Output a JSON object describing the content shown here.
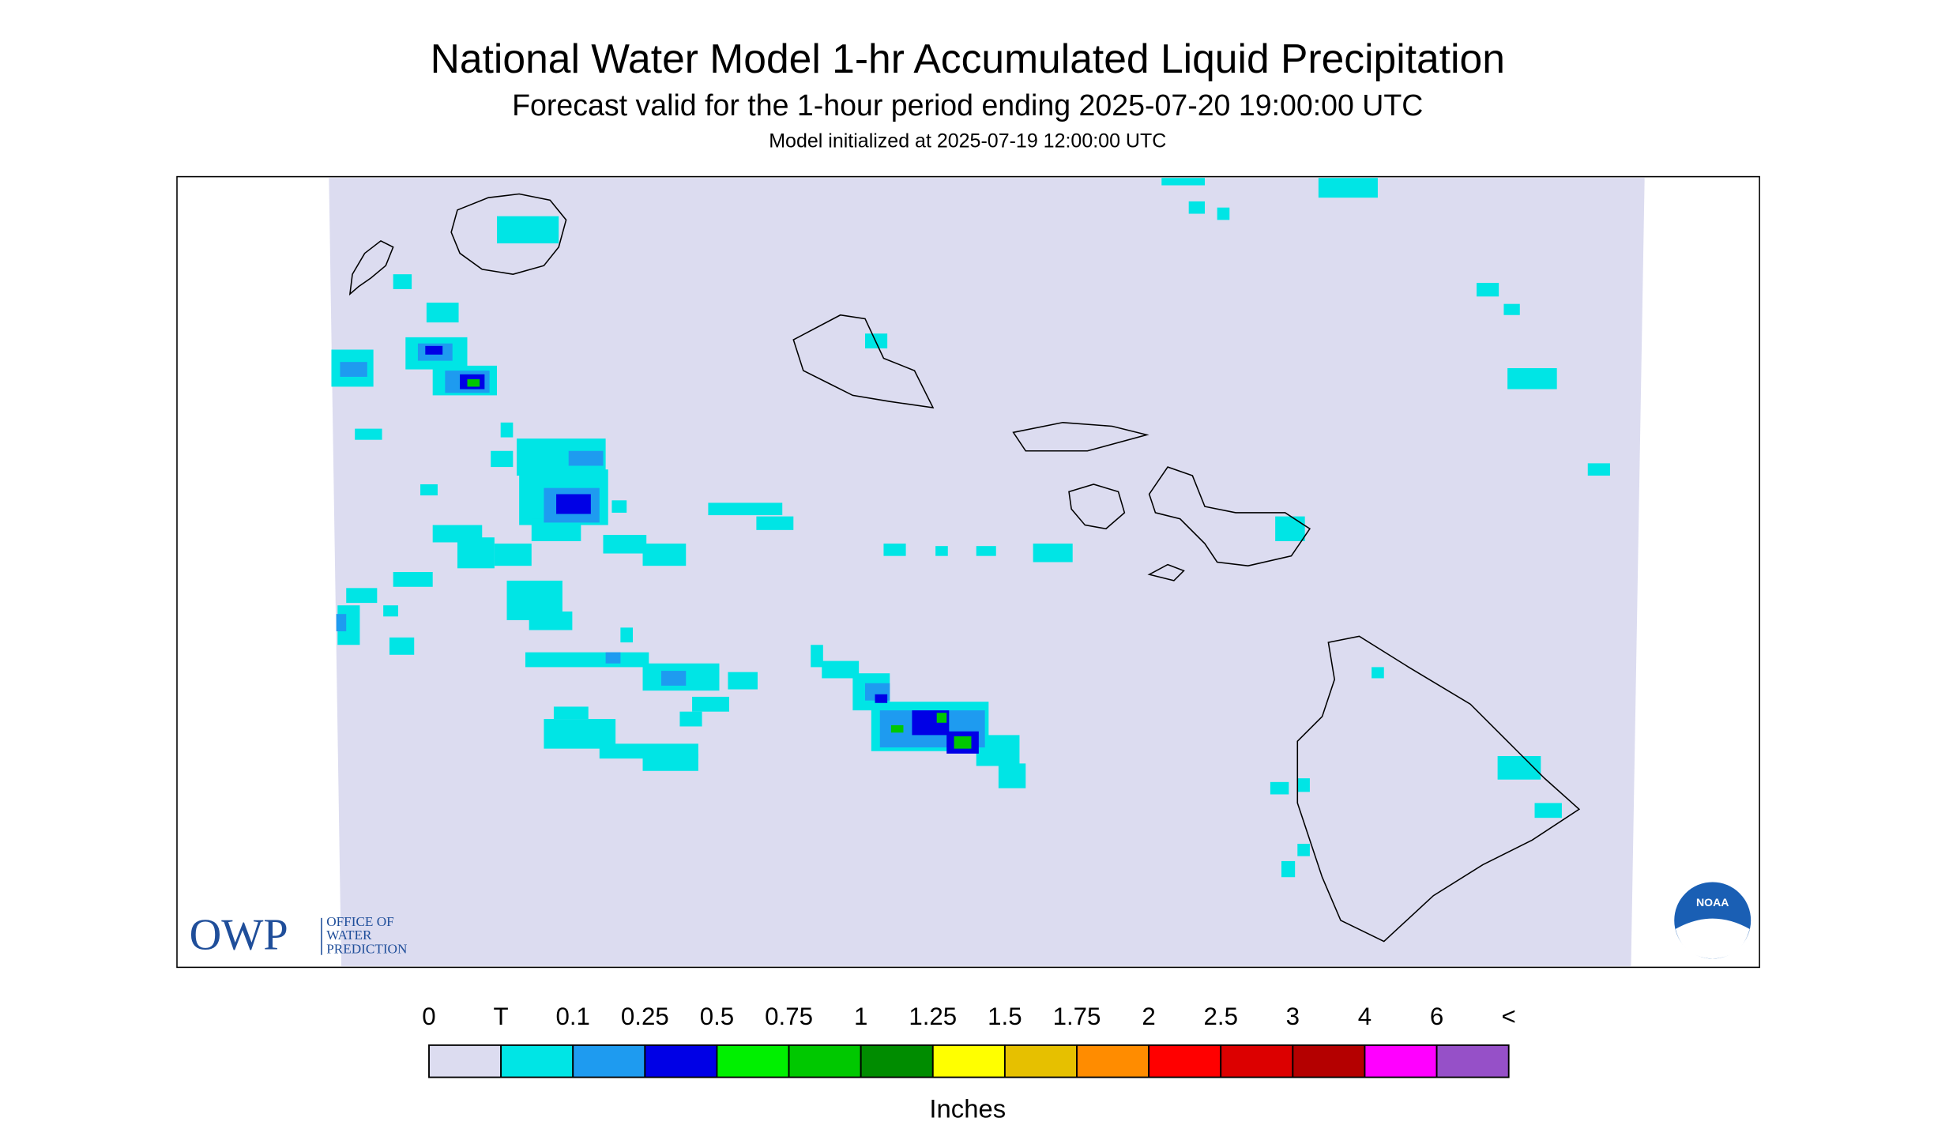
{
  "header": {
    "title": "National Water Model 1-hr Accumulated Liquid Precipitation",
    "subtitle": "Forecast valid for the 1-hour period ending 2025-07-20 19:00:00 UTC",
    "init": "Model initialized at 2025-07-19 12:00:00 UTC"
  },
  "logos": {
    "owp": "OWP",
    "owp_lines": [
      "OFFICE OF",
      "WATER",
      "PREDICTION"
    ],
    "noaa": "NOAA"
  },
  "legend": {
    "labels": [
      "0",
      "T",
      "0.1",
      "0.25",
      "0.5",
      "0.75",
      "1",
      "1.25",
      "1.5",
      "1.75",
      "2",
      "2.5",
      "3",
      "4",
      "6",
      "<"
    ],
    "colors": [
      "#dcdcf0",
      "#00e5e5",
      "#1e9bf0",
      "#0000e6",
      "#00f000",
      "#00c800",
      "#008c00",
      "#ffff00",
      "#e6c000",
      "#ff8c00",
      "#ff0000",
      "#dc0000",
      "#b40000",
      "#ff00ff",
      "#9650c8"
    ],
    "unit": "Inches"
  }
}
